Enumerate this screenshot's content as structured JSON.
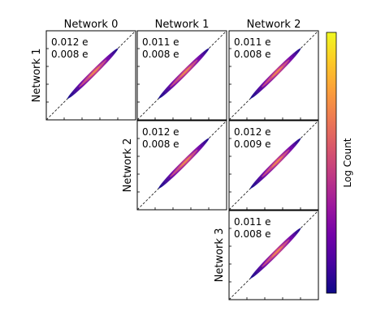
{
  "chart_data": {
    "type": "heatmap",
    "column_titles": [
      "Network 0",
      "Network 1",
      "Network 2"
    ],
    "row_labels": [
      "Network 1",
      "Network 2",
      "Network 3"
    ],
    "colorbar": {
      "label": "Log Count",
      "cmap": "plasma"
    },
    "reference_line": "y = x (dashed)",
    "grid": false,
    "panels": [
      {
        "row": 0,
        "col": 0,
        "row_network": "Network 1",
        "col_network": "Network 0",
        "line1": "0.012 e",
        "line2": "0.008 e"
      },
      {
        "row": 0,
        "col": 1,
        "row_network": "Network 1",
        "col_network": "Network 1",
        "line1": "0.011 e",
        "line2": "0.008 e"
      },
      {
        "row": 0,
        "col": 2,
        "row_network": "Network 1",
        "col_network": "Network 2",
        "line1": "0.011 e",
        "line2": "0.008 e"
      },
      {
        "row": 1,
        "col": 1,
        "row_network": "Network 2",
        "col_network": "Network 1",
        "line1": "0.012 e",
        "line2": "0.008 e"
      },
      {
        "row": 1,
        "col": 2,
        "row_network": "Network 2",
        "col_network": "Network 2",
        "line1": "0.012 e",
        "line2": "0.009 e"
      },
      {
        "row": 2,
        "col": 2,
        "row_network": "Network 3",
        "col_network": "Network 2",
        "line1": "0.011 e",
        "line2": "0.008 e"
      }
    ]
  }
}
